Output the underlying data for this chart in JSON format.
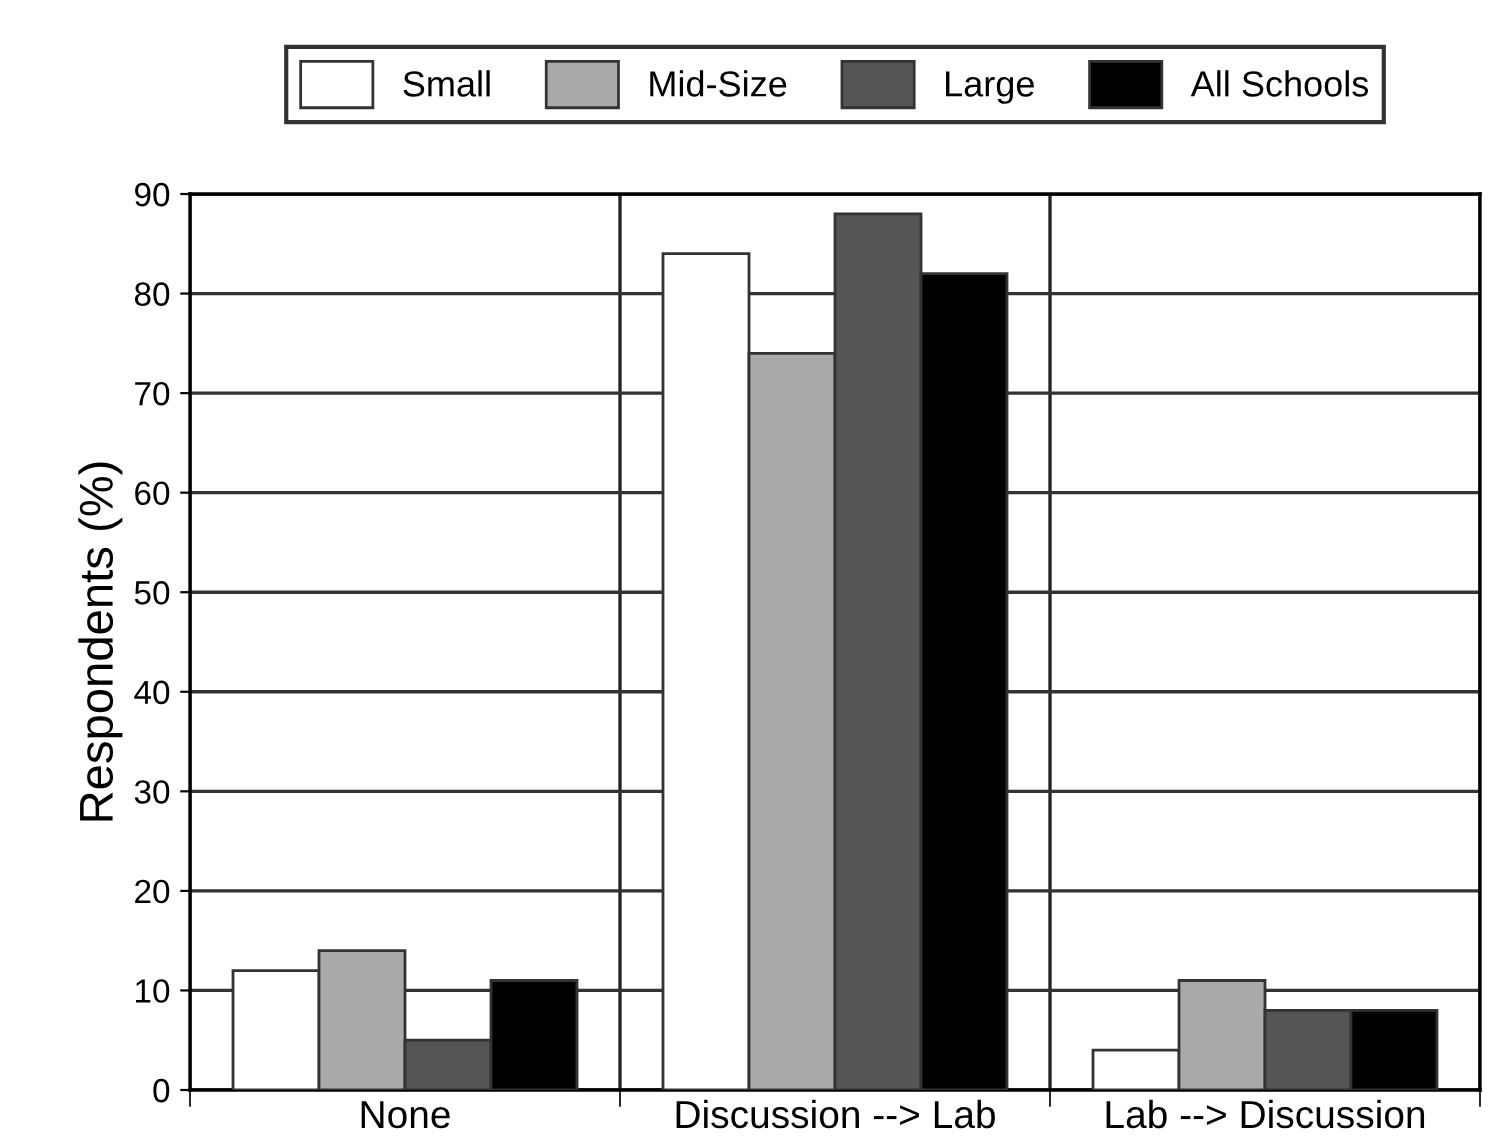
{
  "chart_data": {
    "type": "bar",
    "ylabel": "Respondents (%)",
    "categories": [
      "None",
      "Discussion --> Lab",
      "Lab --> Discussion"
    ],
    "series": [
      {
        "name": "Small",
        "color": "#ffffff",
        "values": [
          12,
          84,
          4
        ]
      },
      {
        "name": "Mid-Size",
        "color": "#aaaaaa",
        "values": [
          14,
          74,
          11
        ]
      },
      {
        "name": "Large",
        "color": "#555555",
        "values": [
          5,
          88,
          8
        ]
      },
      {
        "name": "All Schools",
        "color": "#000000",
        "values": [
          11,
          82,
          8
        ]
      }
    ],
    "ylim": [
      0,
      90
    ],
    "yticks": [
      0,
      10,
      20,
      30,
      40,
      50,
      60,
      70,
      80,
      90
    ],
    "grid": true,
    "legend": "top"
  }
}
